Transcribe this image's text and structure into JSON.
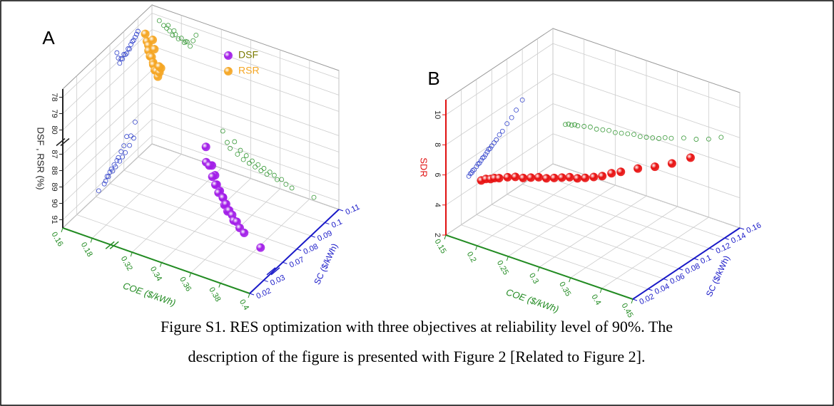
{
  "chart_data": [
    {
      "type": "scatter3d",
      "title": "A",
      "xlabel": "COE ($/kWh)",
      "ylabel": "SC ($/kWh)",
      "zlabel": "DSF , RSR (%)",
      "xlim": [
        0.16,
        0.4
      ],
      "xbreak": [
        0.19,
        0.31
      ],
      "xticks": [
        0.16,
        0.18,
        0.32,
        0.34,
        0.36,
        0.38,
        0.4
      ],
      "ylim": [
        0.02,
        0.11
      ],
      "ybreak": [
        0.035,
        0.065
      ],
      "yticks": [
        0.02,
        0.03,
        0.07,
        0.08,
        0.09,
        0.1,
        0.11
      ],
      "zlim": [
        91.5,
        77.5
      ],
      "zbreak": [
        86.5,
        80.5
      ],
      "zticks": [
        91,
        90,
        89,
        88,
        87,
        80,
        79,
        78
      ],
      "grid": true,
      "legend": "top-right",
      "axis_colors": [
        "#228b22",
        "#1a1ac8",
        "#222222"
      ],
      "projection_colors": [
        "#3344cc",
        "#3a9a3a"
      ],
      "series": [
        {
          "name": "DSF",
          "color": "#a21ee8",
          "x": [
            0.321,
            0.324,
            0.326,
            0.329,
            0.331,
            0.333,
            0.335,
            0.337,
            0.339,
            0.341,
            0.343,
            0.345,
            0.347,
            0.349,
            0.351,
            0.353,
            0.356,
            0.358,
            0.361,
            0.364,
            0.368,
            0.383
          ],
          "y": [
            0.098,
            0.095,
            0.097,
            0.092,
            0.094,
            0.09,
            0.091,
            0.088,
            0.089,
            0.086,
            0.087,
            0.085,
            0.084,
            0.083,
            0.082,
            0.081,
            0.08,
            0.079,
            0.078,
            0.077,
            0.076,
            0.072
          ],
          "z": [
            89.2,
            89.8,
            90.1,
            89.6,
            90.3,
            90.0,
            90.5,
            90.2,
            90.6,
            90.4,
            90.7,
            90.5,
            90.8,
            90.6,
            90.9,
            90.7,
            90.8,
            91.0,
            90.9,
            91.1,
            91.2,
            91.3
          ]
        },
        {
          "name": "RSR",
          "color": "#f5a623",
          "x": [
            0.165,
            0.168,
            0.17,
            0.172,
            0.174,
            0.176,
            0.178,
            0.18,
            0.182,
            0.184,
            0.186,
            0.188,
            0.19,
            0.175,
            0.171,
            0.183
          ],
          "y": [
            0.1,
            0.098,
            0.097,
            0.095,
            0.094,
            0.093,
            0.092,
            0.09,
            0.089,
            0.088,
            0.087,
            0.086,
            0.085,
            0.096,
            0.099,
            0.091
          ],
          "z": [
            78.3,
            78.5,
            78.6,
            78.7,
            78.9,
            78.8,
            79.0,
            78.9,
            79.1,
            79.0,
            79.2,
            78.8,
            78.4,
            78.6,
            78.4,
            79.0
          ]
        }
      ]
    },
    {
      "type": "scatter3d",
      "title": "B",
      "xlabel": "COE ($/kWh)",
      "ylabel": "SC ($/kWh)",
      "zlabel": "SDR",
      "xlim": [
        0.15,
        0.45
      ],
      "xticks": [
        0.15,
        0.2,
        0.25,
        0.3,
        0.35,
        0.4,
        0.45
      ],
      "ylim": [
        0.02,
        0.16
      ],
      "yticks": [
        0.02,
        0.04,
        0.06,
        0.08,
        0.1,
        0.12,
        0.14,
        0.16
      ],
      "zlim": [
        2,
        11
      ],
      "zticks": [
        2,
        4,
        6,
        8,
        10
      ],
      "grid": true,
      "axis_colors": [
        "#228b22",
        "#1a1ac8",
        "#e01010"
      ],
      "projection_colors": [
        "#3344cc",
        "#3a9a3a"
      ],
      "series": [
        {
          "color": "#e81010",
          "x": [
            0.17,
            0.175,
            0.18,
            0.185,
            0.19,
            0.2,
            0.21,
            0.22,
            0.23,
            0.24,
            0.25,
            0.26,
            0.27,
            0.28,
            0.29,
            0.3,
            0.31,
            0.32,
            0.33,
            0.34,
            0.36,
            0.38,
            0.4,
            0.42
          ],
          "y": [
            0.05,
            0.052,
            0.054,
            0.055,
            0.057,
            0.06,
            0.062,
            0.064,
            0.066,
            0.068,
            0.07,
            0.072,
            0.074,
            0.076,
            0.078,
            0.08,
            0.083,
            0.086,
            0.09,
            0.094,
            0.1,
            0.106,
            0.112,
            0.12
          ],
          "z": [
            4.9,
            5.0,
            5.0,
            5.1,
            5.1,
            5.2,
            5.3,
            5.3,
            5.4,
            5.5,
            5.5,
            5.6,
            5.7,
            5.8,
            5.8,
            5.9,
            6.0,
            6.1,
            6.3,
            6.4,
            6.7,
            6.9,
            7.2,
            7.6
          ]
        }
      ]
    }
  ],
  "caption": [
    "Figure S1. RES optimization with three objectives at reliability level of 90%. The",
    "description of the figure is presented with Figure 2 [Related to Figure 2]."
  ]
}
